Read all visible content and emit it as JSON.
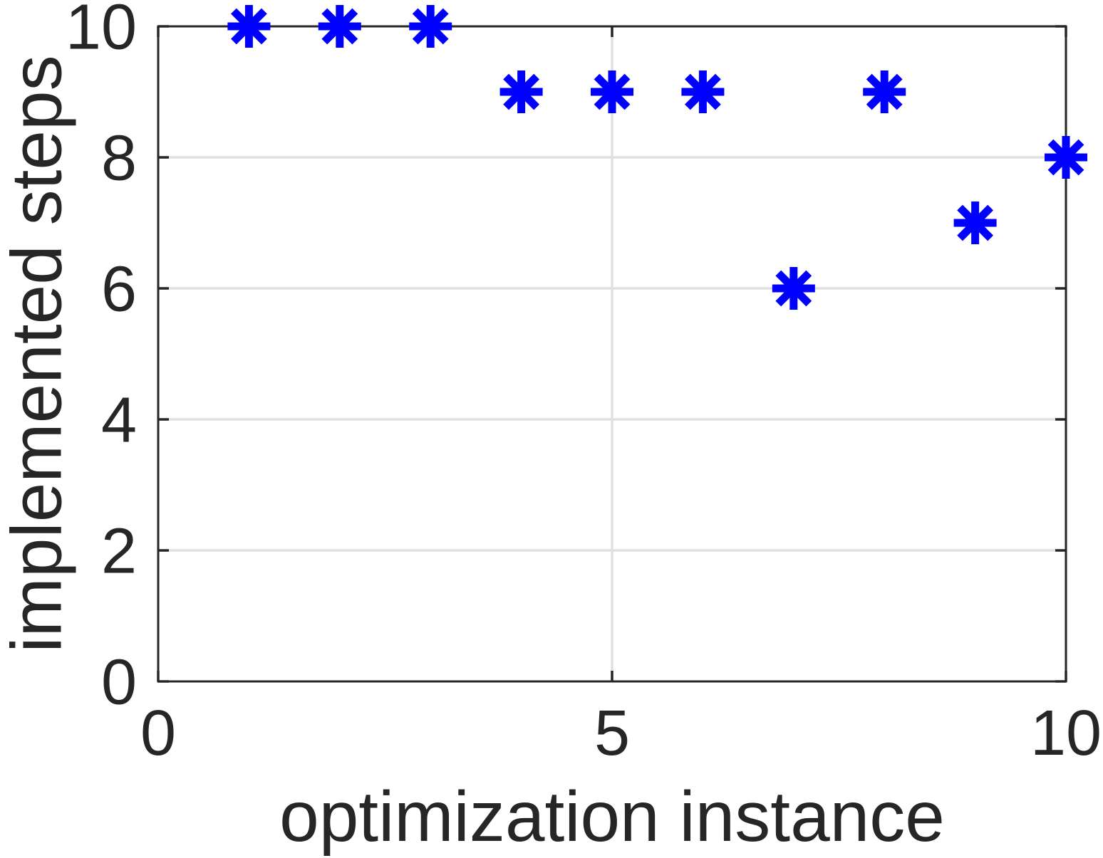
{
  "figure": {
    "background": "#ffffff"
  },
  "chart_data": {
    "type": "scatter",
    "x": [
      1,
      2,
      3,
      4,
      5,
      6,
      7,
      8,
      9,
      10
    ],
    "y": [
      10,
      10,
      10,
      9,
      9,
      9,
      6,
      9,
      7,
      8
    ],
    "title": "",
    "xlabel": "optimization instance",
    "ylabel": "implemented steps",
    "xlim": [
      0,
      10
    ],
    "ylim": [
      0,
      10
    ],
    "xticks": [
      0,
      5,
      10
    ],
    "xtick_labels": [
      "0",
      "5",
      "10"
    ],
    "yticks": [
      0,
      2,
      4,
      6,
      8,
      10
    ],
    "ytick_labels": [
      "0",
      "2",
      "4",
      "6",
      "8",
      "10"
    ],
    "grid": true,
    "grid_x_lines": [
      5
    ],
    "grid_y_lines": [
      2,
      4,
      6,
      8
    ],
    "legend": "none",
    "marker": "asterisk",
    "marker_color": "#0000ff",
    "axis_color": "#262626",
    "grid_color": "#e0e0e0",
    "tick_direction": "in"
  }
}
